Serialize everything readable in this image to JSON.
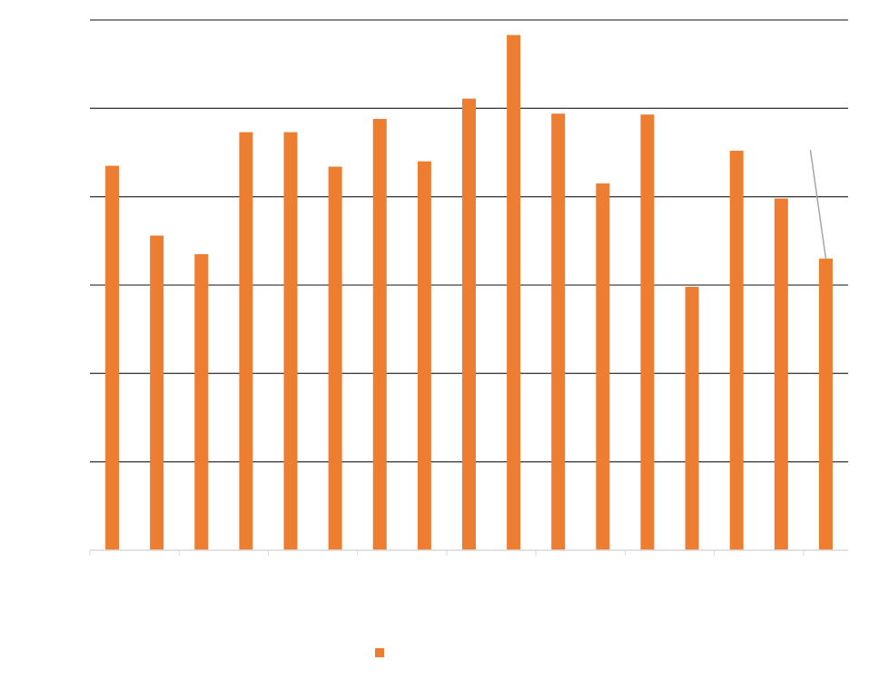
{
  "chart_data": {
    "type": "bar",
    "title": "",
    "xlabel": "",
    "ylabel": "",
    "ylim": [
      0,
      6
    ],
    "grid": true,
    "legend_position": "bottom",
    "tick_labels_visible": false,
    "bar_color": "#ED7D31",
    "grid_color": "#404040",
    "axis_color": "#D9D9D9",
    "annotation_line_color": "#A6A6A6",
    "values": [
      4.35,
      3.56,
      3.35,
      4.73,
      4.73,
      4.34,
      4.88,
      4.4,
      5.11,
      5.83,
      4.94,
      4.15,
      4.93,
      2.98,
      4.52,
      3.98,
      3.3
    ],
    "series": [
      {
        "name": "",
        "color": "#ED7D31"
      }
    ]
  }
}
